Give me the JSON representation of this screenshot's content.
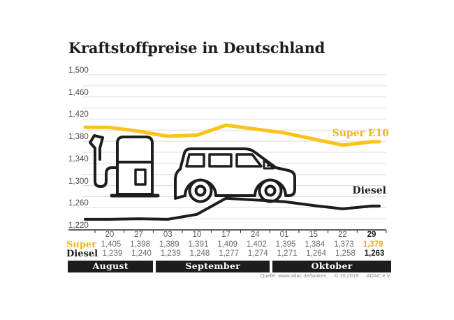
{
  "title": "Kraftstoffpreise in Deutschland",
  "colors": {
    "super_yellow": "#fcc31b",
    "super_text": "#f0b414",
    "ink": "#1d1d1b",
    "grid": "#dcdcdc",
    "axis": "#2a2a2a",
    "date_gray": "#5a5a5a",
    "value_gray": "#6b6b6b",
    "band_bg": "#1d1d1b",
    "band_text": "#ffffff",
    "source_gray": "#878787"
  },
  "chart_data": {
    "type": "line",
    "title": "Kraftstoffpreise in Deutschland",
    "x_labels": [
      "20",
      "27",
      "03",
      "10",
      "17",
      "24",
      "01",
      "15",
      "22",
      "29"
    ],
    "months": [
      {
        "label": "August",
        "span": 2
      },
      {
        "label": "September",
        "span": 4
      },
      {
        "label": "Oktober",
        "span": 4
      }
    ],
    "ylim": [
      1.22,
      1.5
    ],
    "grid_step": 0.02,
    "yticks": [
      1.22,
      1.26,
      1.3,
      1.34,
      1.38,
      1.42,
      1.46,
      1.5
    ],
    "grid": true,
    "legend_position": "inline-right",
    "series": [
      {
        "name": "Super E10",
        "color": "#fcc31b",
        "stroke_width": 5,
        "values": [
          1.405,
          1.398,
          1.389,
          1.391,
          1.409,
          1.402,
          1.395,
          1.384,
          1.373,
          1.379
        ]
      },
      {
        "name": "Diesel",
        "color": "#1d1d1b",
        "stroke_width": 4,
        "values": [
          1.239,
          1.24,
          1.239,
          1.248,
          1.277,
          1.274,
          1.271,
          1.264,
          1.258,
          1.263
        ]
      }
    ]
  },
  "table": {
    "row_labels": [
      "Super",
      "Diesel"
    ]
  },
  "source": {
    "quelle": "Quelle: www.adac.de/tanken",
    "copyright": "© 10.2019",
    "org": "ADAC e.V."
  },
  "icons": [
    {
      "name": "fuel-pump-icon"
    },
    {
      "name": "car-icon"
    }
  ]
}
